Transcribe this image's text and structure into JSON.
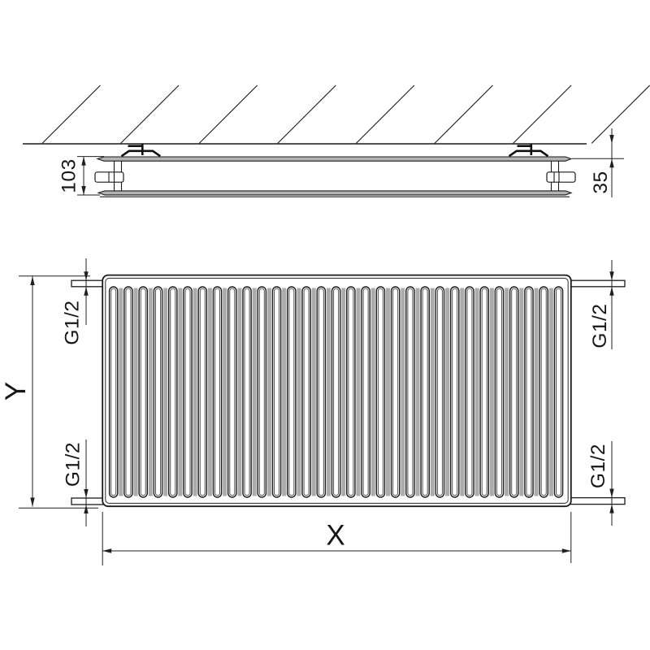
{
  "drawing": {
    "top_view": {
      "depth_dimension": "103",
      "wall_distance_dimension": "35"
    },
    "front_view": {
      "height_dimension": "Y",
      "width_dimension": "X",
      "rib_count": 31,
      "connections": {
        "top_left": "G1/2",
        "top_right": "G1/2",
        "bottom_left": "G1/2",
        "bottom_right": "G1/2"
      }
    },
    "colors": {
      "line": "#1a1a1a",
      "panel_fill": "#b3b3b3",
      "rib_shadow": "#ababab",
      "background": "#ffffff"
    },
    "hatch": {
      "line_count": 8
    }
  }
}
